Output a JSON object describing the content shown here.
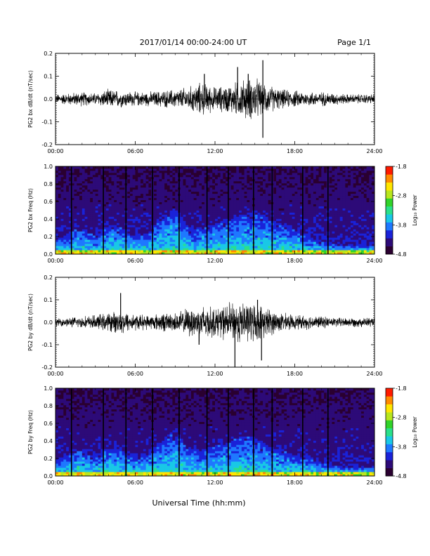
{
  "header": {
    "title": "2017/01/14  00:00-24:00 UT",
    "page": "Page 1/1"
  },
  "footer": {
    "xlabel": "Universal Time (hh:mm)"
  },
  "colors": {
    "trace": "#000000",
    "colormap": [
      "#2a0030",
      "#2d0a78",
      "#1a22d8",
      "#1e78ff",
      "#19c8e6",
      "#2ae08a",
      "#31d32a",
      "#b8e61e",
      "#ffe600",
      "#ff8a00",
      "#ff1a00"
    ]
  },
  "chart_data": [
    {
      "type": "line",
      "name": "panel-1-bx-dbdt",
      "ylabel": "PG2 bx dB/dt (nT/sec)",
      "xlim": [
        0,
        24
      ],
      "ylim": [
        -0.2,
        0.2
      ],
      "yticks": [
        "-0.2",
        "-0.1",
        "0.0",
        "0.1",
        "0.2"
      ],
      "xticks": [
        "00:00",
        "06:00",
        "12:00",
        "18:00",
        "24:00"
      ],
      "envelope": {
        "hours": [
          0,
          1,
          2,
          3,
          4,
          5,
          6,
          7,
          8,
          9,
          10,
          11,
          12,
          13,
          14,
          15,
          16,
          17,
          18,
          19,
          20,
          21,
          22,
          23,
          24
        ],
        "amplitude": [
          0.02,
          0.025,
          0.03,
          0.025,
          0.04,
          0.035,
          0.03,
          0.03,
          0.035,
          0.04,
          0.05,
          0.07,
          0.05,
          0.06,
          0.08,
          0.09,
          0.06,
          0.04,
          0.035,
          0.03,
          0.03,
          0.025,
          0.02,
          0.02,
          0.02
        ]
      },
      "spikes": [
        {
          "hour": 13.7,
          "value": 0.14
        },
        {
          "hour": 15.6,
          "value": 0.17
        },
        {
          "hour": 15.6,
          "value": -0.17
        },
        {
          "hour": 11.2,
          "value": 0.11
        },
        {
          "hour": 14.5,
          "value": 0.11
        }
      ]
    },
    {
      "type": "heatmap",
      "name": "panel-2-bx-spectrogram",
      "ylabel": "PG2 bx Freq (Hz)",
      "xlim": [
        0,
        24
      ],
      "ylim": [
        0,
        1.0
      ],
      "yticks": [
        "0.0",
        "0.2",
        "0.4",
        "0.6",
        "0.8",
        "1.0"
      ],
      "xticks": [
        "00:00",
        "06:00",
        "12:00",
        "18:00",
        "24:00"
      ],
      "colorbar": {
        "label": "Log₁₀ Power",
        "range": [
          -4.8,
          -1.8
        ],
        "ticks": [
          "-1.8",
          "-2.8",
          "-3.8",
          "-4.8"
        ]
      },
      "gap_lines_hours": [
        1.2,
        3.6,
        5.3,
        7.3,
        9.3,
        11.4,
        13.0,
        14.9,
        16.3,
        18.6,
        20.5
      ],
      "activity_profile": {
        "hours": [
          0,
          1,
          2,
          3,
          4,
          5,
          6,
          7,
          8,
          9,
          10,
          11,
          12,
          13,
          14,
          15,
          16,
          17,
          18,
          19,
          20,
          21,
          22,
          23,
          24
        ],
        "fmax_hz": [
          0.15,
          0.25,
          0.3,
          0.2,
          0.35,
          0.3,
          0.2,
          0.25,
          0.4,
          0.55,
          0.3,
          0.3,
          0.35,
          0.4,
          0.45,
          0.5,
          0.4,
          0.35,
          0.3,
          0.2,
          0.15,
          0.12,
          0.1,
          0.1,
          0.1
        ]
      }
    },
    {
      "type": "line",
      "name": "panel-3-by-dbdt",
      "ylabel": "PG2 by dB/dt (nT/sec)",
      "xlim": [
        0,
        24
      ],
      "ylim": [
        -0.2,
        0.2
      ],
      "yticks": [
        "-0.2",
        "-0.1",
        "0.0",
        "0.1",
        "0.2"
      ],
      "xticks": [
        "00:00",
        "06:00",
        "12:00",
        "18:00",
        "24:00"
      ],
      "envelope": {
        "hours": [
          0,
          1,
          2,
          3,
          4,
          5,
          6,
          7,
          8,
          9,
          10,
          11,
          12,
          13,
          14,
          15,
          16,
          17,
          18,
          19,
          20,
          21,
          22,
          23,
          24
        ],
        "amplitude": [
          0.015,
          0.02,
          0.025,
          0.03,
          0.04,
          0.05,
          0.035,
          0.03,
          0.04,
          0.04,
          0.06,
          0.08,
          0.06,
          0.08,
          0.09,
          0.08,
          0.06,
          0.04,
          0.03,
          0.03,
          0.025,
          0.02,
          0.02,
          0.02,
          0.02
        ]
      },
      "spikes": [
        {
          "hour": 4.9,
          "value": 0.13
        },
        {
          "hour": 13.5,
          "value": -0.2
        },
        {
          "hour": 15.5,
          "value": -0.17
        },
        {
          "hour": 15.2,
          "value": 0.1
        },
        {
          "hour": 10.8,
          "value": -0.1
        }
      ]
    },
    {
      "type": "heatmap",
      "name": "panel-4-by-spectrogram",
      "ylabel": "PG2 by Freq (Hz)",
      "xlim": [
        0,
        24
      ],
      "ylim": [
        0,
        1.0
      ],
      "yticks": [
        "0.0",
        "0.2",
        "0.4",
        "0.6",
        "0.8",
        "1.0"
      ],
      "xticks": [
        "00:00",
        "06:00",
        "12:00",
        "18:00",
        "24:00"
      ],
      "colorbar": {
        "label": "Log₁₀ Power",
        "range": [
          -4.8,
          -1.8
        ],
        "ticks": [
          "-1.8",
          "-2.8",
          "-3.8",
          "-4.8"
        ]
      },
      "gap_lines_hours": [
        1.2,
        3.6,
        5.3,
        7.3,
        9.3,
        11.4,
        13.0,
        14.9,
        16.3,
        18.6,
        20.5
      ],
      "activity_profile": {
        "hours": [
          0,
          1,
          2,
          3,
          4,
          5,
          6,
          7,
          8,
          9,
          10,
          11,
          12,
          13,
          14,
          15,
          16,
          17,
          18,
          19,
          20,
          21,
          22,
          23,
          24
        ],
        "fmax_hz": [
          0.15,
          0.25,
          0.3,
          0.2,
          0.35,
          0.3,
          0.2,
          0.25,
          0.4,
          0.55,
          0.3,
          0.3,
          0.35,
          0.4,
          0.45,
          0.45,
          0.35,
          0.3,
          0.25,
          0.2,
          0.15,
          0.12,
          0.1,
          0.1,
          0.1
        ]
      }
    }
  ]
}
